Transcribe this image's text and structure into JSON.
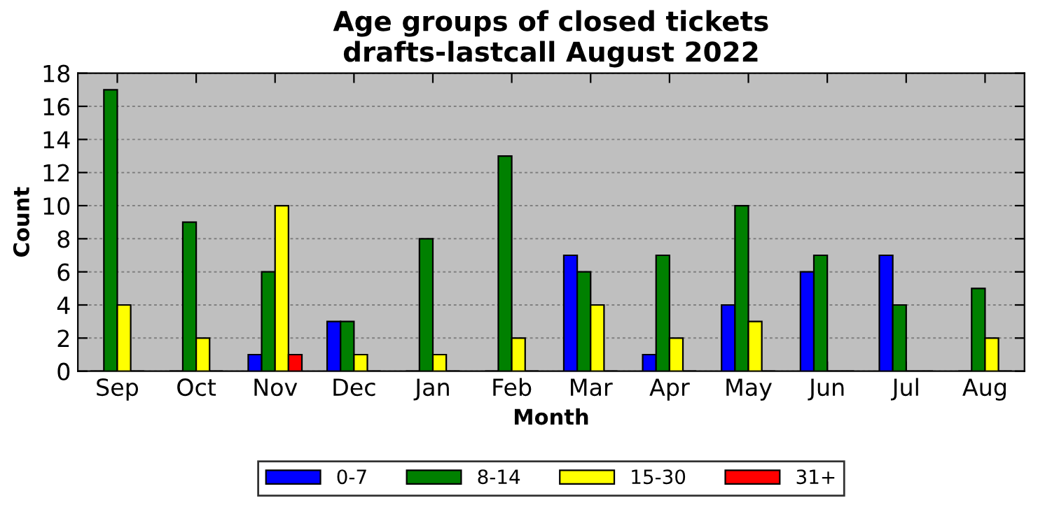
{
  "chart_data": {
    "type": "bar",
    "title": "Age groups of closed tickets\ndrafts-lastcall August 2022",
    "xlabel": "Month",
    "ylabel": "Count",
    "categories": [
      "Sep",
      "Oct",
      "Nov",
      "Dec",
      "Jan",
      "Feb",
      "Mar",
      "Apr",
      "May",
      "Jun",
      "Jul",
      "Aug"
    ],
    "series": [
      {
        "name": "0-7",
        "color": "#0000ff",
        "values": [
          0,
          0,
          1,
          3,
          0,
          0,
          7,
          1,
          4,
          6,
          7,
          0
        ]
      },
      {
        "name": "8-14",
        "color": "#008000",
        "values": [
          17,
          9,
          6,
          3,
          8,
          13,
          6,
          7,
          10,
          7,
          4,
          5
        ]
      },
      {
        "name": "15-30",
        "color": "#ffff00",
        "values": [
          4,
          2,
          10,
          1,
          1,
          2,
          4,
          2,
          3,
          0,
          0,
          2
        ]
      },
      {
        "name": "31+",
        "color": "#ff0000",
        "values": [
          0,
          0,
          1,
          0,
          0,
          0,
          0,
          0,
          0,
          0,
          0,
          0
        ]
      }
    ],
    "ylim": [
      0,
      18
    ],
    "yticks": [
      0,
      2,
      4,
      6,
      8,
      10,
      12,
      14,
      16,
      18
    ],
    "grid": "y",
    "legend": "bottom"
  }
}
